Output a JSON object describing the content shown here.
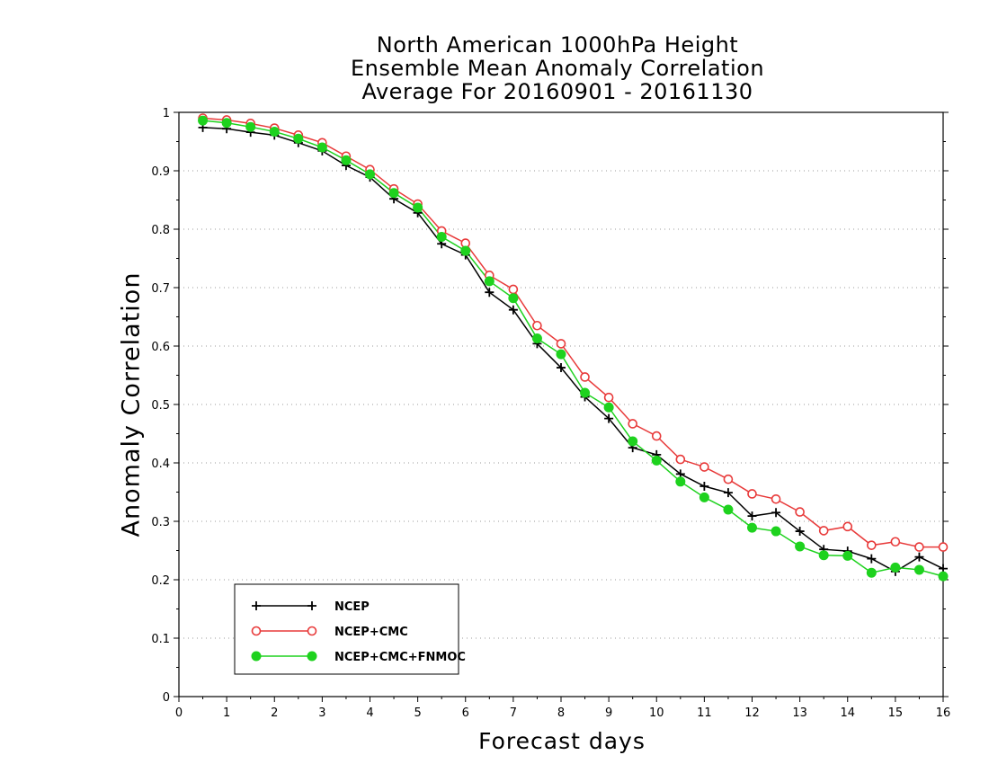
{
  "chart_data": {
    "type": "line",
    "title": [
      "North American 1000hPa Height",
      "Ensemble Mean Anomaly Correlation",
      "Average For 20160901 - 20161130"
    ],
    "xlabel": "Forecast days",
    "ylabel": "Anomaly Correlation",
    "xlim": [
      0,
      16
    ],
    "ylim": [
      0,
      1
    ],
    "xticks": [
      "0",
      "1",
      "2",
      "3",
      "4",
      "5",
      "6",
      "7",
      "8",
      "9",
      "10",
      "11",
      "12",
      "13",
      "14",
      "15",
      "16"
    ],
    "yticks": [
      "0",
      "0.1",
      "0.2",
      "0.3",
      "0.4",
      "0.5",
      "0.6",
      "0.7",
      "0.8",
      "0.9",
      "1"
    ],
    "grid": "dotted horizontal",
    "legend_position": "bottom-left",
    "x": [
      0.5,
      1,
      1.5,
      2,
      2.5,
      3,
      3.5,
      4,
      4.5,
      5,
      5.5,
      6,
      6.5,
      7,
      7.5,
      8,
      8.5,
      9,
      9.5,
      10,
      10.5,
      11,
      11.5,
      12,
      12.5,
      13,
      13.5,
      14,
      14.5,
      15,
      15.5,
      16
    ],
    "series": [
      {
        "name": "NCEP",
        "color": "#000000",
        "marker": "plus",
        "values": [
          0.974,
          0.972,
          0.966,
          0.961,
          0.948,
          0.934,
          0.909,
          0.889,
          0.852,
          0.828,
          0.775,
          0.756,
          0.692,
          0.662,
          0.604,
          0.563,
          0.513,
          0.476,
          0.426,
          0.414,
          0.381,
          0.36,
          0.349,
          0.309,
          0.315,
          0.283,
          0.252,
          0.249,
          0.236,
          0.214,
          0.239,
          0.219
        ]
      },
      {
        "name": "NCEP+CMC",
        "color": "#e83a3a",
        "marker": "open-circle",
        "values": [
          0.99,
          0.987,
          0.981,
          0.973,
          0.961,
          0.948,
          0.925,
          0.902,
          0.869,
          0.843,
          0.797,
          0.776,
          0.721,
          0.697,
          0.635,
          0.604,
          0.547,
          0.512,
          0.467,
          0.446,
          0.406,
          0.393,
          0.372,
          0.347,
          0.338,
          0.316,
          0.284,
          0.291,
          0.259,
          0.265,
          0.256,
          0.256
        ]
      },
      {
        "name": "NCEP+CMC+FNMOC",
        "color": "#1ed21e",
        "marker": "filled-circle",
        "values": [
          0.986,
          0.982,
          0.975,
          0.967,
          0.955,
          0.94,
          0.918,
          0.894,
          0.862,
          0.837,
          0.787,
          0.763,
          0.711,
          0.682,
          0.613,
          0.586,
          0.52,
          0.495,
          0.437,
          0.404,
          0.368,
          0.341,
          0.32,
          0.289,
          0.283,
          0.257,
          0.242,
          0.241,
          0.212,
          0.221,
          0.217,
          0.206
        ]
      }
    ]
  }
}
